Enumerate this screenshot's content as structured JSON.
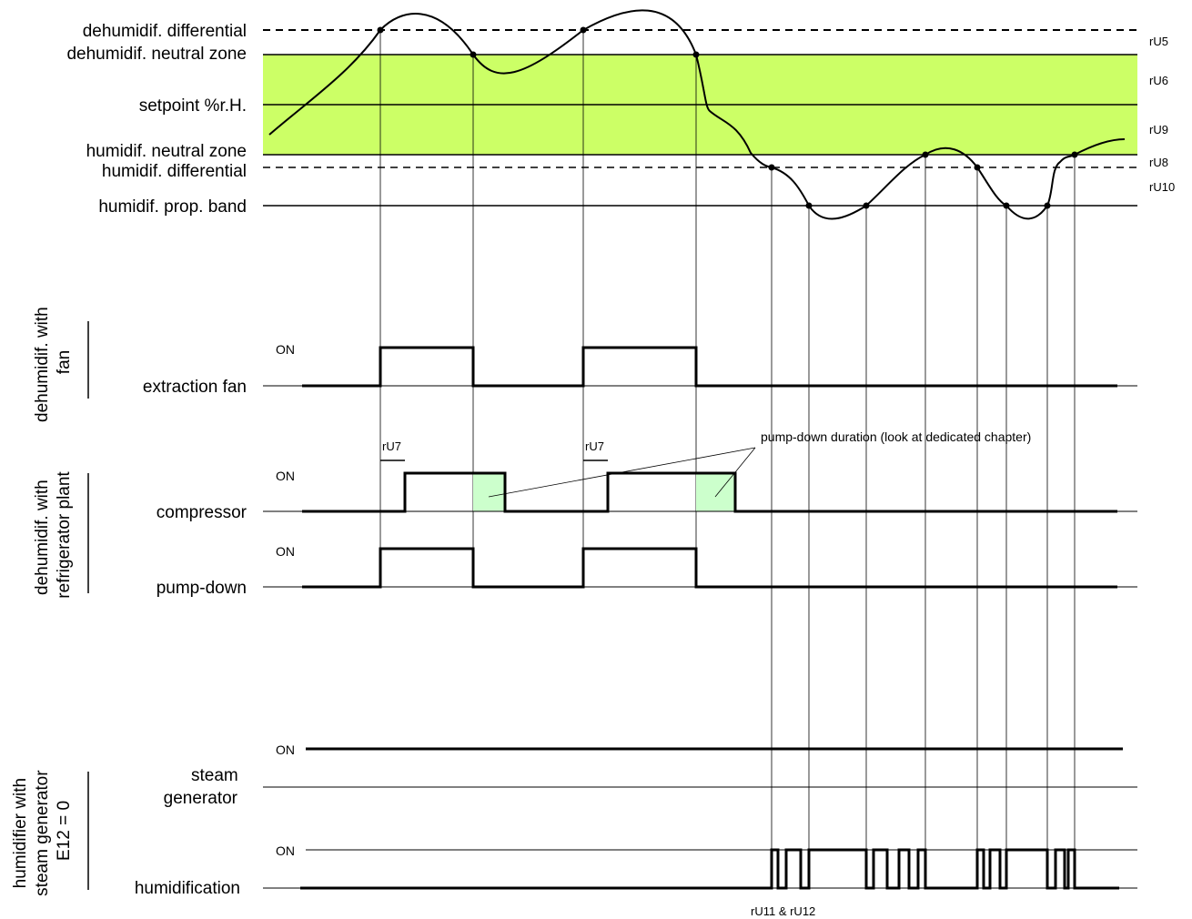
{
  "levels": {
    "dehum_differential": "dehumidif. differential",
    "dehum_neutral_zone": "dehumidif. neutral zone",
    "setpoint": "setpoint %r.H.",
    "hum_neutral_zone": "humidif. neutral zone",
    "hum_differential": "humidif. differential",
    "hum_prop_band": "humidif. prop. band"
  },
  "params": {
    "ru5": "rU5",
    "ru6": "rU6",
    "ru9": "rU9",
    "ru8": "rU8",
    "ru10": "rU10",
    "ru7": "rU7",
    "ru11_12": "rU11 & rU12"
  },
  "groups": {
    "fan": [
      "dehumidif. with",
      "fan"
    ],
    "refrigerator": [
      "dehumidif. with",
      "refrigerator plant"
    ],
    "steam": [
      "humidifier with",
      "steam generator",
      "E12 = 0"
    ]
  },
  "signals": {
    "extraction_fan": "extraction fan",
    "compressor": "compressor",
    "pump_down": "pump-down",
    "steam_generator": [
      "steam",
      "generator"
    ],
    "humidification": "humidification"
  },
  "on_label": "ON",
  "annotation": "pump-down duration (look at dedicated chapter)",
  "colors": {
    "band": "#ccff66",
    "pumpdown_fill": "#ccffcc",
    "line": "#000000"
  }
}
